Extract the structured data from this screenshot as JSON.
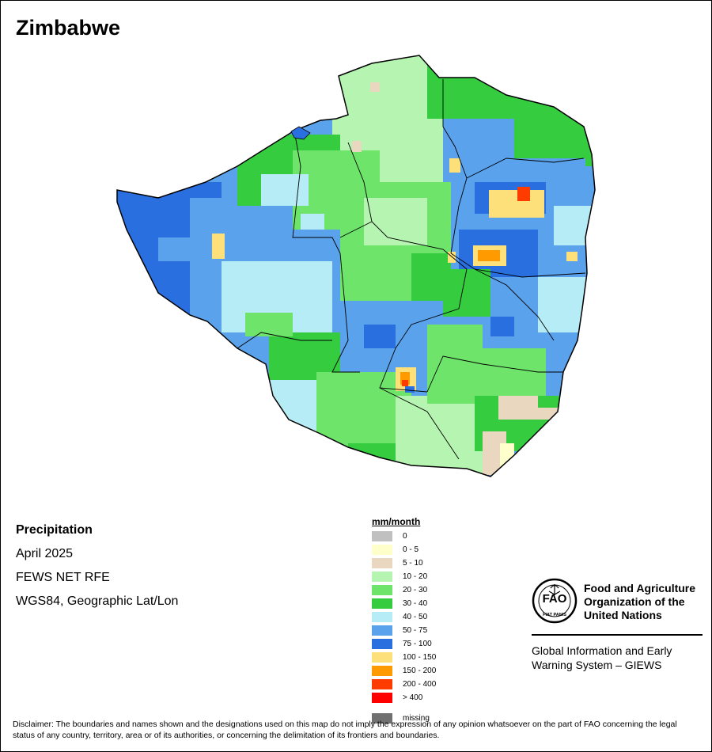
{
  "title": "Zimbabwe",
  "info": {
    "heading": "Precipitation",
    "period": "April 2025",
    "source": "FEWS NET RFE",
    "projection": "WGS84, Geographic Lat/Lon"
  },
  "legend": {
    "unit": "mm/month",
    "classes": [
      {
        "label": "0",
        "color": "#c0c0c0"
      },
      {
        "label": "0 - 5",
        "color": "#ffffcc"
      },
      {
        "label": "5 - 10",
        "color": "#ead7bf"
      },
      {
        "label": "10 - 20",
        "color": "#b6f5b1"
      },
      {
        "label": "20 - 30",
        "color": "#6ee46a"
      },
      {
        "label": "30 - 40",
        "color": "#35cc3f"
      },
      {
        "label": "40 - 50",
        "color": "#b6ecf6"
      },
      {
        "label": "50 - 75",
        "color": "#5aa2ec"
      },
      {
        "label": "75 - 100",
        "color": "#2a6fe0"
      },
      {
        "label": "100 - 150",
        "color": "#fde07a"
      },
      {
        "label": "150 - 200",
        "color": "#ff9a00"
      },
      {
        "label": "200 - 400",
        "color": "#ff3c00"
      },
      {
        "label": "> 400",
        "color": "#ff0000"
      }
    ],
    "missing": {
      "label": "missing",
      "color": "#707070"
    }
  },
  "organization": {
    "name_line1": "Food and Agriculture",
    "name_line2": "Organization of the",
    "name_line3": "United Nations",
    "system_line1": "Global Information and Early",
    "system_line2": "Warning System – GIEWS",
    "logo_text": "FAO",
    "logo_motto": "FIAT PANIS"
  },
  "disclaimer": "Disclaimer: The boundaries and names shown and the designations used on this map do not imply the expression of any opinion whatsoever on the part of FAO concerning the legal status of any country, territory, area or of its authorities, or concerning the delimitation of its frontiers and boundaries."
}
